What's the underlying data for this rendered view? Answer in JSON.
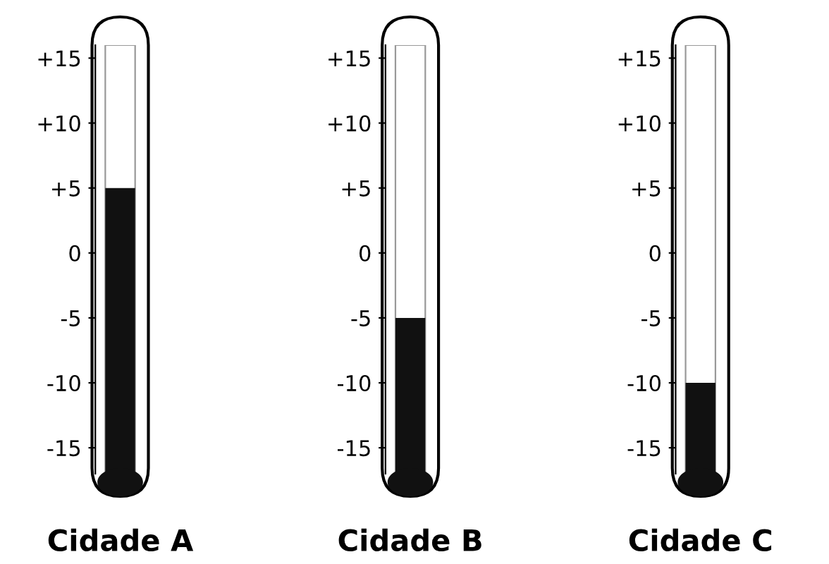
{
  "chart_data": {
    "type": "bar",
    "categories": [
      "Cidade A",
      "Cidade B",
      "Cidade C"
    ],
    "values": [
      22,
      12,
      7
    ],
    "base": [
      -17,
      -17,
      -17
    ],
    "color": "#111111",
    "ylim": [
      -17,
      16
    ],
    "yticks": [
      {
        "value": 15,
        "label": "+15"
      },
      {
        "value": 10,
        "label": "+10"
      },
      {
        "value": 5,
        "label": "+5"
      },
      {
        "value": 0,
        "label": "0"
      },
      {
        "value": -5,
        "label": "-5"
      },
      {
        "value": -10,
        "label": "-10"
      },
      {
        "value": -15,
        "label": "-15"
      }
    ]
  }
}
